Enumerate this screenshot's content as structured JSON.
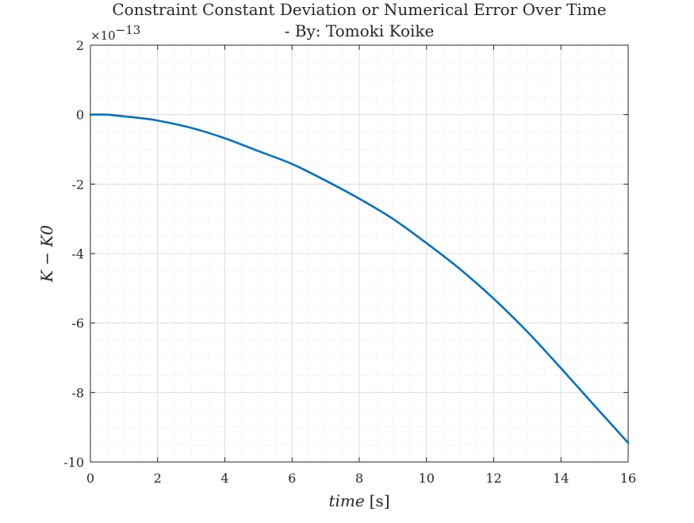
{
  "chart_data": {
    "type": "line",
    "title": "Constraint Constant Deviation or Numerical Error Over Time",
    "subtitle": "- By: Tomoki Koike",
    "xlabel_var": "time",
    "xlabel_unit": "[s]",
    "ylabel": "K − K0",
    "exponent_label": "×10",
    "exponent_power": "−13",
    "xlim": [
      0,
      16
    ],
    "ylim": [
      -10,
      2
    ],
    "y_scale_factor": 1e-13,
    "x_ticks": [
      0,
      2,
      4,
      6,
      8,
      10,
      12,
      14,
      16
    ],
    "x_tick_labels": [
      "0",
      "2",
      "4",
      "6",
      "8",
      "10",
      "12",
      "14",
      "16"
    ],
    "y_ticks": [
      2,
      0,
      -2,
      -4,
      -6,
      -8,
      -10
    ],
    "y_tick_labels": [
      "2",
      "0",
      "-2",
      "-4",
      "-6",
      "-8",
      "-10"
    ],
    "grid": true,
    "minor_grid": true,
    "line_color": "#0072BD",
    "series": [
      {
        "x": [
          0,
          0.5,
          1,
          1.5,
          2,
          3,
          4,
          5,
          6,
          7,
          8,
          9,
          10,
          11,
          12,
          13,
          14,
          15,
          16
        ],
        "y": [
          0,
          0,
          -0.05,
          -0.1,
          -0.17,
          -0.38,
          -0.68,
          -1.05,
          -1.42,
          -1.9,
          -2.42,
          -3.0,
          -3.7,
          -4.45,
          -5.3,
          -6.25,
          -7.3,
          -8.38,
          -9.45
        ]
      }
    ]
  }
}
